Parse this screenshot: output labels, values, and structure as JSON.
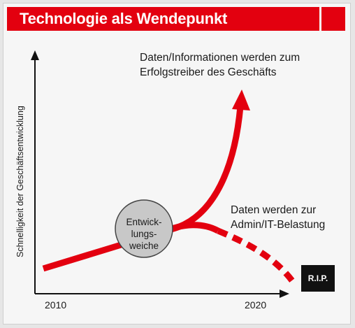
{
  "title": "Technologie als Wendepunkt",
  "annotations": {
    "growth_line1": "Daten/Informationen werden zum",
    "growth_line2": "Erfolgstreiber des Geschäfts",
    "burden_line1": "Daten werden zur",
    "burden_line2": "Admin/IT-Belastung"
  },
  "axis": {
    "y_label": "Schnelligkeit der Geschäftsentwicklung",
    "x_start": "2010",
    "x_end": "2020"
  },
  "junction": {
    "line1": "Entwick-",
    "line2": "lungs-",
    "line3": "weiche"
  },
  "end_box": "R.I.P.",
  "colors": {
    "accent": "#e3000f",
    "circle_fill": "#c8c8c8",
    "axis": "#111111",
    "end_box": "#111111"
  }
}
